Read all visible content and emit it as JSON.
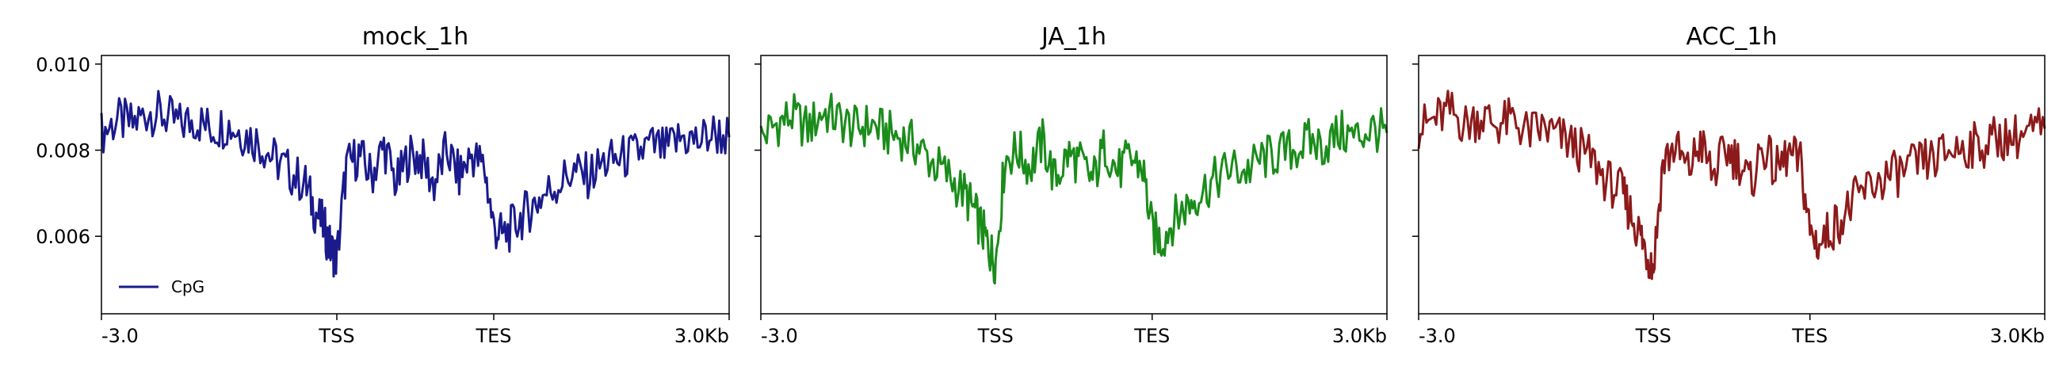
{
  "chart_data": [
    {
      "type": "line",
      "title": "mock_1h",
      "color": "#1a1a8c",
      "ylim": [
        0.0042,
        0.0102
      ],
      "yticks": [
        {
          "value": 0.006,
          "label": "0.006"
        },
        {
          "value": 0.008,
          "label": "0.008"
        },
        {
          "value": 0.01,
          "label": "0.010"
        }
      ],
      "xlim": [
        0,
        1.0
      ],
      "xticks": [
        {
          "value": 0.0,
          "label": "-3.0"
        },
        {
          "value": 0.375,
          "label": "TSS"
        },
        {
          "value": 0.625,
          "label": "TES"
        },
        {
          "value": 1.0,
          "label": "3.0Kb"
        }
      ],
      "legend": {
        "label": "CpG",
        "position": "lower-left"
      },
      "series": [
        {
          "name": "CpG",
          "x": [
            0.0,
            0.025,
            0.05,
            0.075,
            0.1,
            0.125,
            0.15,
            0.175,
            0.2,
            0.225,
            0.25,
            0.275,
            0.3,
            0.325,
            0.34,
            0.355,
            0.365,
            0.375,
            0.39,
            0.41,
            0.43,
            0.45,
            0.47,
            0.49,
            0.51,
            0.53,
            0.55,
            0.57,
            0.59,
            0.61,
            0.625,
            0.64,
            0.66,
            0.68,
            0.7,
            0.725,
            0.75,
            0.775,
            0.8,
            0.825,
            0.85,
            0.875,
            0.9,
            0.925,
            0.95,
            0.975,
            1.0
          ],
          "y": [
            0.0084,
            0.0087,
            0.0086,
            0.0089,
            0.0088,
            0.0086,
            0.0087,
            0.0085,
            0.0086,
            0.0084,
            0.0082,
            0.0078,
            0.0075,
            0.0072,
            0.0066,
            0.0062,
            0.0057,
            0.0055,
            0.0076,
            0.0079,
            0.0074,
            0.0081,
            0.0072,
            0.0079,
            0.0078,
            0.0072,
            0.008,
            0.0074,
            0.0079,
            0.0076,
            0.0062,
            0.006,
            0.0063,
            0.0066,
            0.0069,
            0.0072,
            0.0075,
            0.0074,
            0.0077,
            0.0078,
            0.0079,
            0.0081,
            0.008,
            0.0083,
            0.0082,
            0.0084,
            0.0083
          ]
        }
      ]
    },
    {
      "type": "line",
      "title": "JA_1h",
      "color": "#1a8c1a",
      "ylim": [
        0.0042,
        0.0102
      ],
      "yticks": [
        {
          "value": 0.006,
          "label": ""
        },
        {
          "value": 0.008,
          "label": ""
        },
        {
          "value": 0.01,
          "label": ""
        }
      ],
      "xlim": [
        0,
        1.0
      ],
      "xticks": [
        {
          "value": 0.0,
          "label": "-3.0"
        },
        {
          "value": 0.375,
          "label": "TSS"
        },
        {
          "value": 0.625,
          "label": "TES"
        },
        {
          "value": 1.0,
          "label": "3.0Kb"
        }
      ],
      "series": [
        {
          "name": "",
          "x": [
            0.0,
            0.025,
            0.05,
            0.075,
            0.1,
            0.125,
            0.15,
            0.175,
            0.2,
            0.225,
            0.25,
            0.275,
            0.3,
            0.325,
            0.34,
            0.355,
            0.365,
            0.375,
            0.39,
            0.41,
            0.43,
            0.45,
            0.47,
            0.49,
            0.51,
            0.53,
            0.55,
            0.57,
            0.59,
            0.61,
            0.625,
            0.64,
            0.66,
            0.68,
            0.7,
            0.725,
            0.75,
            0.775,
            0.8,
            0.825,
            0.85,
            0.875,
            0.9,
            0.925,
            0.95,
            0.975,
            1.0
          ],
          "y": [
            0.0083,
            0.0086,
            0.0088,
            0.0085,
            0.0089,
            0.0087,
            0.0085,
            0.0086,
            0.0084,
            0.0083,
            0.0081,
            0.0077,
            0.0074,
            0.007,
            0.0066,
            0.0061,
            0.0057,
            0.0054,
            0.0078,
            0.008,
            0.0076,
            0.0082,
            0.0073,
            0.0079,
            0.0077,
            0.0073,
            0.0081,
            0.0075,
            0.0078,
            0.0076,
            0.0061,
            0.0059,
            0.0064,
            0.0067,
            0.007,
            0.0073,
            0.0076,
            0.0075,
            0.0078,
            0.0079,
            0.008,
            0.0082,
            0.0081,
            0.0084,
            0.0083,
            0.0085,
            0.0084
          ]
        }
      ]
    },
    {
      "type": "line",
      "title": "ACC_1h",
      "color": "#8c1a1a",
      "ylim": [
        0.0042,
        0.0102
      ],
      "yticks": [
        {
          "value": 0.006,
          "label": ""
        },
        {
          "value": 0.008,
          "label": ""
        },
        {
          "value": 0.01,
          "label": ""
        }
      ],
      "xlim": [
        0,
        1.0
      ],
      "xticks": [
        {
          "value": 0.0,
          "label": "-3.0"
        },
        {
          "value": 0.375,
          "label": "TSS"
        },
        {
          "value": 0.625,
          "label": "TES"
        },
        {
          "value": 1.0,
          "label": "3.0Kb"
        }
      ],
      "series": [
        {
          "name": "",
          "x": [
            0.0,
            0.025,
            0.05,
            0.075,
            0.1,
            0.125,
            0.15,
            0.175,
            0.2,
            0.225,
            0.25,
            0.275,
            0.3,
            0.325,
            0.34,
            0.355,
            0.365,
            0.375,
            0.39,
            0.41,
            0.43,
            0.45,
            0.47,
            0.49,
            0.51,
            0.53,
            0.55,
            0.57,
            0.59,
            0.61,
            0.625,
            0.64,
            0.66,
            0.68,
            0.7,
            0.725,
            0.75,
            0.775,
            0.8,
            0.825,
            0.85,
            0.875,
            0.9,
            0.925,
            0.95,
            0.975,
            1.0
          ],
          "y": [
            0.0085,
            0.0087,
            0.0089,
            0.0086,
            0.0088,
            0.0086,
            0.0087,
            0.0084,
            0.0085,
            0.0083,
            0.0081,
            0.0078,
            0.0073,
            0.007,
            0.0065,
            0.006,
            0.0056,
            0.0053,
            0.0077,
            0.0081,
            0.0075,
            0.0082,
            0.0074,
            0.008,
            0.0078,
            0.0072,
            0.0081,
            0.0075,
            0.0079,
            0.0077,
            0.0061,
            0.0058,
            0.0062,
            0.0065,
            0.0069,
            0.0072,
            0.0074,
            0.0075,
            0.0077,
            0.0078,
            0.008,
            0.0081,
            0.0081,
            0.0083,
            0.0083,
            0.0084,
            0.0085
          ]
        }
      ]
    }
  ]
}
